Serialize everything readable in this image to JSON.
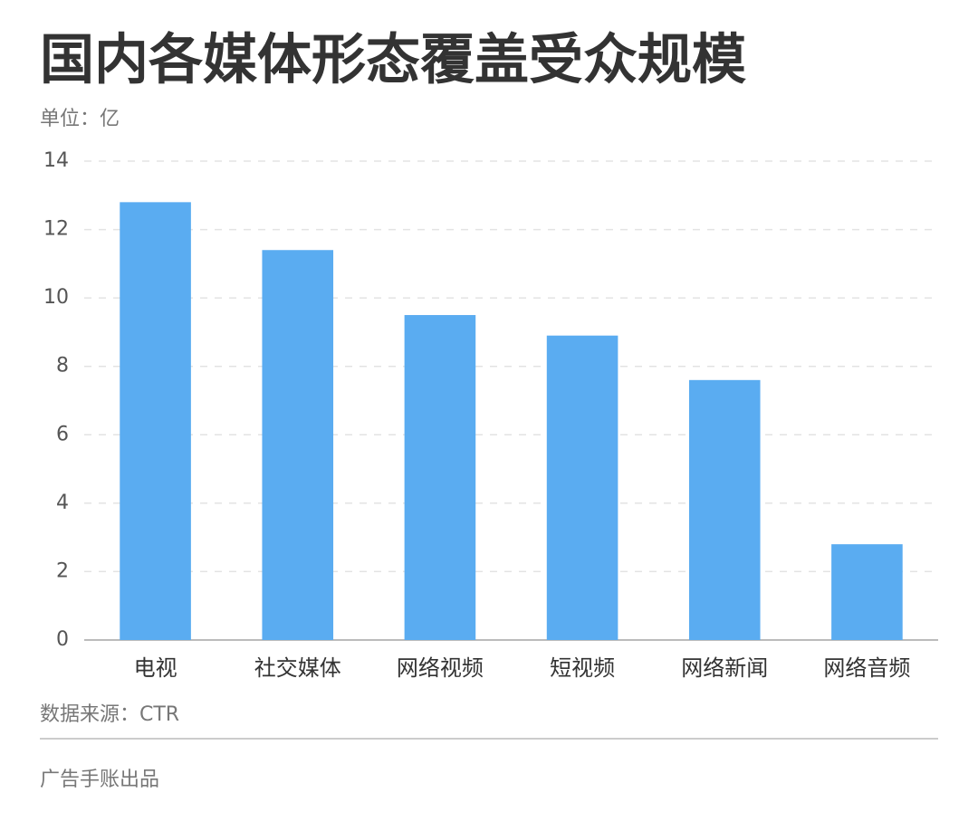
{
  "chart_data": {
    "type": "bar",
    "title": "国内各媒体形态覆盖受众规模",
    "subtitle": "单位：亿",
    "categories": [
      "电视",
      "社交媒体",
      "网络视频",
      "短视频",
      "网络新闻",
      "网络音频"
    ],
    "values": [
      12.8,
      11.4,
      9.5,
      8.9,
      7.6,
      2.8
    ],
    "color": "#5aacf1",
    "ylim": [
      0,
      14
    ],
    "yticks": [
      0,
      2,
      4,
      6,
      8,
      10,
      12,
      14
    ],
    "grid": true,
    "source": "数据来源：CTR",
    "footer": "广告手账出品"
  }
}
